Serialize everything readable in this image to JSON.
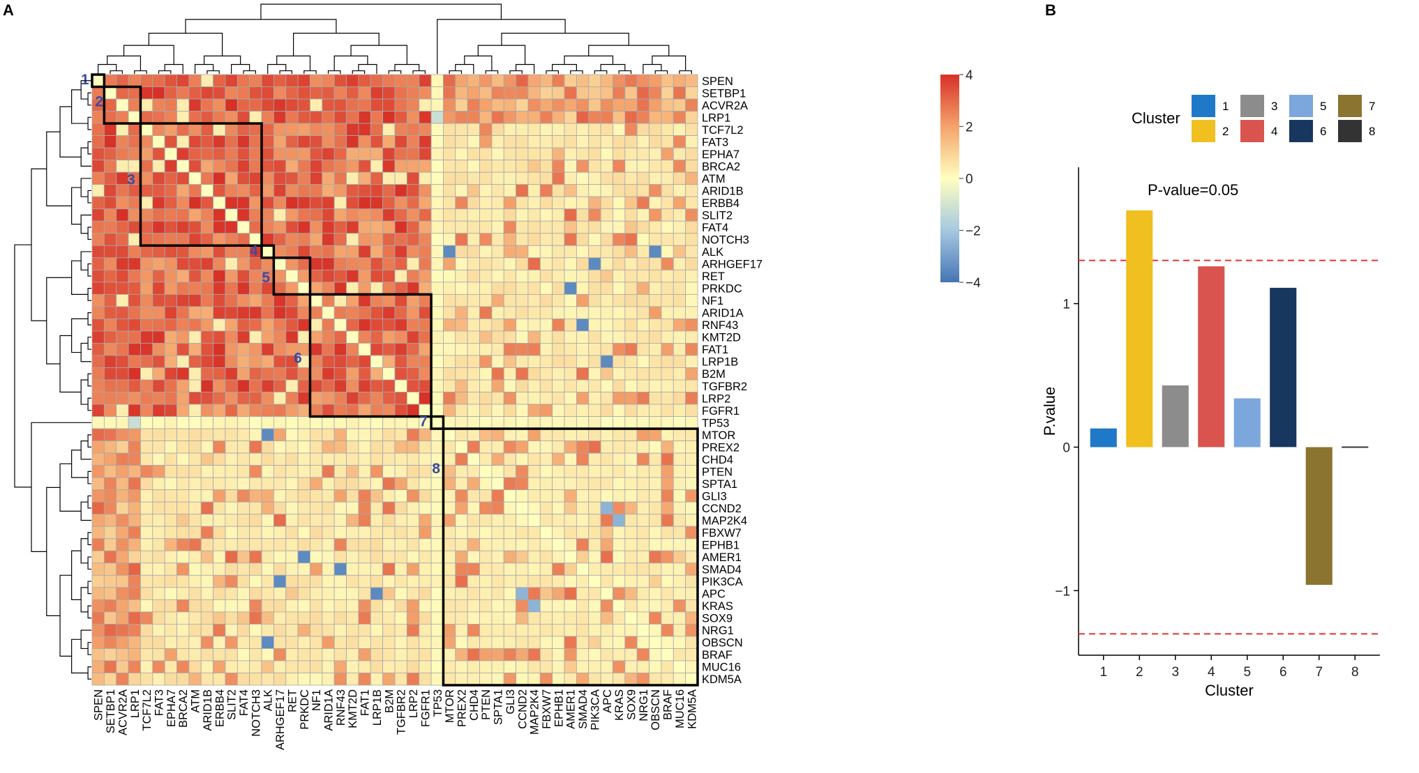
{
  "panels": {
    "a": "A",
    "b": "B"
  },
  "chart_data": [
    {
      "type": "heatmap",
      "title": "",
      "genes": [
        "SPEN",
        "SETBP1",
        "ACVR2A",
        "LRP1",
        "TCF7L2",
        "FAT3",
        "EPHA7",
        "BRCA2",
        "ATM",
        "ARID1B",
        "ERBB4",
        "SLIT2",
        "FAT4",
        "NOTCH3",
        "ALK",
        "ARHGEF17",
        "RET",
        "PRKDC",
        "NF1",
        "ARID1A",
        "RNF43",
        "KMT2D",
        "FAT1",
        "LRP1B",
        "B2M",
        "TGFBR2",
        "LRP2",
        "FGFR1",
        "TP53",
        "MTOR",
        "PREX2",
        "CHD4",
        "PTEN",
        "SPTA1",
        "GLI3",
        "CCND2",
        "MAP2K4",
        "FBXW7",
        "EPHB1",
        "AMER1",
        "SMAD4",
        "PIK3CA",
        "APC",
        "KRAS",
        "SOX9",
        "NRG1",
        "OBSCN",
        "BRAF",
        "MUC16",
        "KDM5A"
      ],
      "color_scale": {
        "min": -4,
        "max": 4,
        "ticks": [
          "4",
          "2",
          "0",
          "−2",
          "−4"
        ],
        "low_color": "#4575b4",
        "mid_color": "#ffffbf",
        "high_color": "#d73027"
      },
      "clusters": [
        {
          "label": "1",
          "start": 0,
          "end": 0
        },
        {
          "label": "2",
          "start": 1,
          "end": 3
        },
        {
          "label": "3",
          "start": 4,
          "end": 13
        },
        {
          "label": "4",
          "start": 14,
          "end": 14
        },
        {
          "label": "5",
          "start": 15,
          "end": 17
        },
        {
          "label": "6",
          "start": 18,
          "end": 27
        },
        {
          "label": "7",
          "start": 28,
          "end": 28
        },
        {
          "label": "8",
          "start": 29,
          "end": 49
        }
      ],
      "notes": "Symmetric co-occurrence/mutual-exclusivity matrix with hierarchical clustering dendrograms; cell values approximated from color"
    },
    {
      "type": "bar",
      "title": "",
      "xlabel": "Cluster",
      "ylabel": "P.value",
      "categories": [
        "1",
        "2",
        "3",
        "4",
        "5",
        "6",
        "7",
        "8"
      ],
      "values": [
        0.13,
        1.65,
        0.43,
        1.26,
        0.34,
        1.11,
        -0.96,
        0.0
      ],
      "colors": [
        "#1f78c8",
        "#f0c020",
        "#8c8c8c",
        "#d9534f",
        "#7ba7dc",
        "#17375e",
        "#8b7330",
        "#333333"
      ],
      "ylim": [
        -1.45,
        1.95
      ],
      "yticks": [
        "1",
        "0",
        "−1"
      ],
      "ytick_values": [
        1,
        0,
        -1
      ],
      "threshold_lines": [
        1.301,
        -1.301
      ],
      "annotation": "P-value=0.05",
      "legend": {
        "title": "Cluster",
        "entries": [
          "1",
          "2",
          "3",
          "4",
          "5",
          "6",
          "7",
          "8"
        ],
        "position": "top"
      }
    }
  ]
}
